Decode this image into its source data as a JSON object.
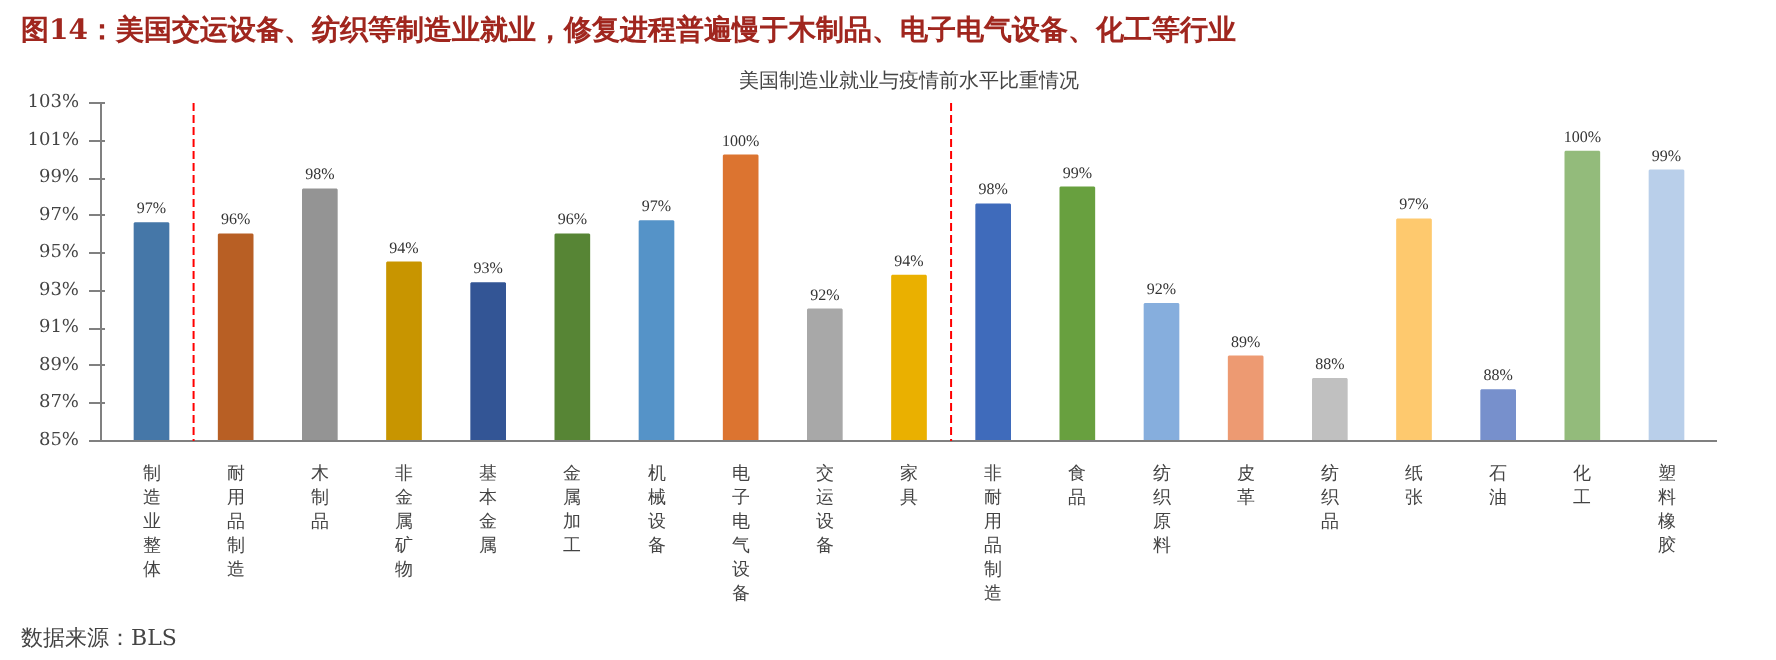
{
  "chart_data": {
    "type": "bar",
    "title": "图14：美国交运设备、纺织等制造业就业，修复进程普遍慢于木制品、电子电气设备、化工等行业",
    "subtitle": "美国制造业就业与疫情前水平比重情况",
    "categories": [
      "制造业整体",
      "耐用品制造",
      "木制品",
      "非金属矿物",
      "基本金属",
      "金属加工",
      "机械设备",
      "电子电气设备",
      "交运设备",
      "家具",
      "非耐用品制造",
      "食品",
      "纺织原料",
      "皮革",
      "纺织品",
      "纸张",
      "石油",
      "化工",
      "塑料橡胶"
    ],
    "values": [
      96.6,
      96.0,
      98.4,
      94.5,
      93.4,
      96.0,
      96.7,
      100.2,
      92.0,
      93.8,
      97.6,
      98.5,
      92.3,
      89.5,
      88.3,
      96.8,
      87.7,
      100.4,
      99.4
    ],
    "value_labels": [
      "97%",
      "96%",
      "98%",
      "94%",
      "93%",
      "96%",
      "97%",
      "100%",
      "92%",
      "94%",
      "98%",
      "99%",
      "92%",
      "89%",
      "88%",
      "97%",
      "88%",
      "100%",
      "99%"
    ],
    "colors": [
      "#4577a8",
      "#b85f24",
      "#949494",
      "#c89500",
      "#335595",
      "#578535",
      "#5593c8",
      "#dc7430",
      "#a8a8a8",
      "#eab000",
      "#3f6bbb",
      "#68a03f",
      "#86aedd",
      "#ed9a72",
      "#c0c0c0",
      "#fec96e",
      "#7790cc",
      "#93bb7b",
      "#b9cfea"
    ],
    "ylim": [
      85,
      103
    ],
    "yticks": [
      {
        "value": 85,
        "label": "85%"
      },
      {
        "value": 87,
        "label": "87%"
      },
      {
        "value": 89,
        "label": "89%"
      },
      {
        "value": 91,
        "label": "91%"
      },
      {
        "value": 93,
        "label": "93%"
      },
      {
        "value": 95,
        "label": "95%"
      },
      {
        "value": 97,
        "label": "97%"
      },
      {
        "value": 99,
        "label": "99%"
      },
      {
        "value": 101,
        "label": "101%"
      },
      {
        "value": 103,
        "label": "103%"
      }
    ],
    "annotations": [
      "数据来源：BLS"
    ],
    "grid": false
  }
}
